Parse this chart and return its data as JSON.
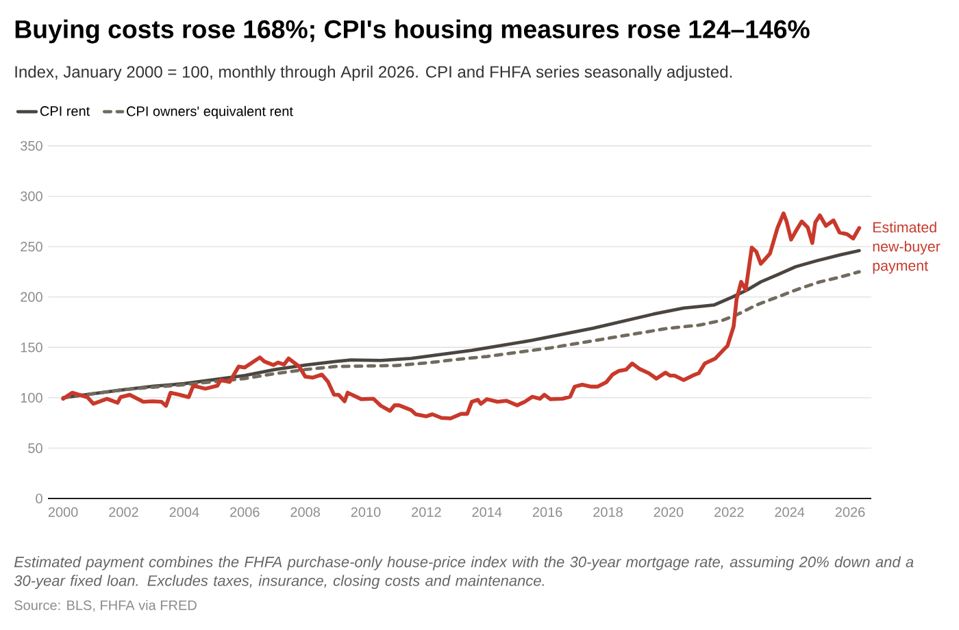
{
  "chart_data": {
    "type": "line",
    "title": "Buying costs rose 168%; CPI's housing measures rose 124–146%",
    "subtitle": "Index, January 2000 = 100, monthly through April 2026. CPI and FHFA series seasonally adjusted.",
    "series": [
      {
        "name": "CPI rent",
        "color": "#4a4540",
        "line_style": "solid",
        "x": [
          2000,
          2001,
          2002,
          2003,
          2004,
          2005,
          2006,
          2007,
          2008,
          2009,
          2009.5,
          2010.5,
          2011.5,
          2012.5,
          2013.5,
          2014.5,
          2015.5,
          2016.5,
          2017.5,
          2018.5,
          2019.5,
          2020.5,
          2021.5,
          2022.15,
          2022.6,
          2023.05,
          2023.6,
          2024.2,
          2024.9,
          2025.7,
          2026.3
        ],
        "values": [
          100,
          104,
          108,
          111.5,
          114,
          118,
          122,
          128,
          132.5,
          136,
          137.5,
          137,
          139,
          143,
          147,
          152,
          157,
          163,
          169,
          176,
          183,
          189,
          192,
          200.5,
          207,
          215,
          222,
          230,
          236,
          242,
          246
        ]
      },
      {
        "name": "CPI owners' equivalent rent",
        "color": "#716b5e",
        "line_style": "dashed",
        "x": [
          2000,
          2002,
          2004,
          2006,
          2007,
          2008,
          2009,
          2010,
          2011,
          2012,
          2013,
          2014,
          2015,
          2016,
          2017,
          2018,
          2019,
          2020,
          2021,
          2021.8,
          2022.3,
          2022.9,
          2023.6,
          2024.3,
          2025,
          2025.7,
          2026.3
        ],
        "values": [
          100,
          108,
          113,
          119,
          124,
          128,
          131,
          131.5,
          132,
          134.5,
          138,
          141,
          145,
          149,
          154,
          159,
          164,
          169,
          172,
          177,
          183,
          192,
          200,
          208,
          215,
          220,
          225
        ]
      },
      {
        "color": "#c8392b",
        "line_style": "solid",
        "x": [
          2000.0,
          2000.3,
          2000.8,
          2001.0,
          2001.45,
          2001.8,
          2001.9,
          2002.2,
          2002.65,
          2002.95,
          2003.25,
          2003.4,
          2003.55,
          2003.85,
          2004.15,
          2004.3,
          2004.7,
          2005.1,
          2005.2,
          2005.5,
          2005.8,
          2006.0,
          2006.5,
          2006.65,
          2006.95,
          2007.1,
          2007.3,
          2007.45,
          2007.8,
          2008.0,
          2008.25,
          2008.55,
          2008.75,
          2008.95,
          2009.1,
          2009.3,
          2009.4,
          2009.85,
          2010.25,
          2010.5,
          2010.8,
          2010.95,
          2011.1,
          2011.5,
          2011.65,
          2012.0,
          2012.2,
          2012.5,
          2012.8,
          2013.15,
          2013.35,
          2013.5,
          2013.7,
          2013.8,
          2014.0,
          2014.35,
          2014.65,
          2015.0,
          2015.25,
          2015.5,
          2015.75,
          2015.9,
          2016.1,
          2016.5,
          2016.75,
          2016.9,
          2017.15,
          2017.45,
          2017.65,
          2017.95,
          2018.15,
          2018.35,
          2018.6,
          2018.8,
          2019.05,
          2019.35,
          2019.6,
          2019.9,
          2020.05,
          2020.2,
          2020.5,
          2020.8,
          2021.0,
          2021.2,
          2021.55,
          2021.8,
          2021.95,
          2022.15,
          2022.25,
          2022.4,
          2022.55,
          2022.75,
          2022.9,
          2023.05,
          2023.2,
          2023.35,
          2023.6,
          2023.8,
          2023.9,
          2024.05,
          2024.2,
          2024.4,
          2024.6,
          2024.75,
          2024.85,
          2025.0,
          2025.2,
          2025.45,
          2025.65,
          2025.9,
          2026.1,
          2026.3
        ],
        "values": [
          99,
          105,
          100.6,
          94,
          99,
          95,
          100.6,
          103,
          96,
          96.5,
          96,
          92,
          105,
          103,
          100.6,
          112,
          109,
          112,
          117.6,
          115.6,
          131,
          130,
          140,
          136,
          132.5,
          135,
          133,
          139,
          131,
          121,
          120,
          123,
          116,
          103,
          103,
          96.5,
          105,
          98.6,
          99,
          92,
          87,
          92.5,
          92.5,
          87.7,
          83.6,
          81.6,
          83.6,
          80,
          79.5,
          84,
          84,
          96,
          98,
          94,
          98.6,
          96,
          97,
          92.5,
          96,
          101,
          99,
          103,
          98.6,
          99,
          101,
          111,
          113,
          111,
          111,
          115.6,
          123,
          126.5,
          128,
          134,
          128.5,
          124.4,
          119,
          125,
          122,
          122,
          117.6,
          122,
          124.4,
          134,
          139,
          147,
          151.6,
          170.6,
          198,
          215,
          207,
          249,
          245,
          233,
          238,
          243,
          268.5,
          283,
          275,
          257,
          265,
          275,
          269,
          253.6,
          274,
          281,
          270.6,
          276,
          264,
          262.4,
          258,
          268.5
        ]
      }
    ],
    "xlim": [
      1999.5,
      2026.7
    ],
    "xticks": [
      2000,
      2002,
      2004,
      2006,
      2008,
      2010,
      2012,
      2014,
      2016,
      2018,
      2020,
      2022,
      2024,
      2026
    ],
    "ylim": [
      0,
      350
    ],
    "yticks": [
      0,
      50,
      100,
      150,
      200,
      250,
      300,
      350
    ],
    "grid": "y",
    "legend": "top left",
    "annotations": [
      {
        "text": "Estimated new-buyer payment",
        "x": 2026.3,
        "y": 268.5
      },
      "Estimated payment combines the FHFA purchase-only house-price index with the 30-year mortgage rate, assuming 20% down and a 30-year fixed loan. Excludes taxes, insurance, closing costs and maintenance.",
      "Source: BLS, FHFA via FRED"
    ]
  }
}
